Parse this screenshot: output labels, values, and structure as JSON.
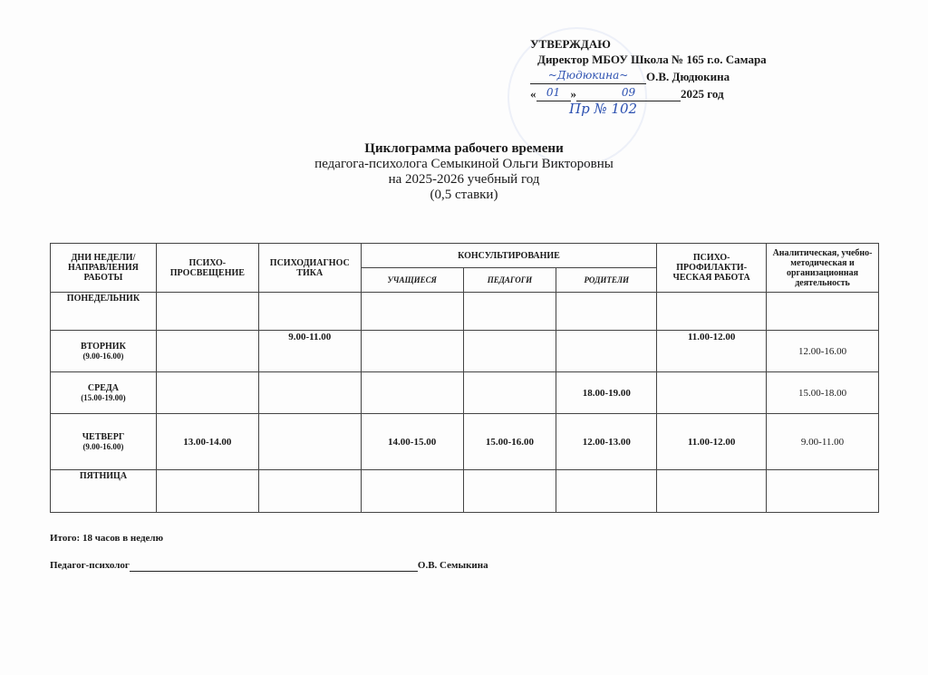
{
  "approval": {
    "heading": "УТВЕРЖДАЮ",
    "position": "Директор МБОУ Школа № 165 г.о. Самара",
    "name": "О.В. Дюдюкина",
    "date_day": "01",
    "date_month": "09",
    "date_year": "2025 год",
    "order": "Пр № 102"
  },
  "title": {
    "main": "Циклограмма рабочего времени",
    "line2": "педагога-психолога Семыкиной Ольги Викторовны",
    "line3": "на 2025-2026 учебный год",
    "line4": "(0,5 ставки)"
  },
  "table": {
    "headers": {
      "days": "ДНИ НЕДЕЛИ/ НАПРАВЛЕНИЯ РАБОТЫ",
      "education": "ПСИХО-ПРОСВЕЩЕНИЕ",
      "diagnostics": "ПСИХОДИАГНОС ТИКА",
      "consulting": "КОНСУЛЬТИРОВАНИЕ",
      "students": "УЧАЩИЕСЯ",
      "teachers": "ПЕДАГОГИ",
      "parents": "РОДИТЕЛИ",
      "prevention": "ПСИХО-ПРОФИЛАКТИ-ЧЕСКАЯ РАБОТА",
      "analytics": "Аналитическая, учебно-методическая и организационная деятельность"
    },
    "rows": [
      {
        "day": "ПОНЕДЕЛЬНИК",
        "hours": "",
        "cells": [
          "",
          "",
          "",
          "",
          "",
          "",
          ""
        ]
      },
      {
        "day": "ВТОРНИК",
        "hours": "(9.00-16.00)",
        "cells": [
          "",
          "9.00-11.00",
          "",
          "",
          "",
          "11.00-12.00",
          "12.00-16.00"
        ]
      },
      {
        "day": "СРЕДА",
        "hours": "(15.00-19.00)",
        "cells": [
          "",
          "",
          "",
          "",
          "18.00-19.00",
          "",
          "15.00-18.00"
        ]
      },
      {
        "day": "ЧЕТВЕРГ",
        "hours": "(9.00-16.00)",
        "cells": [
          "13.00-14.00",
          "",
          "14.00-15.00",
          "15.00-16.00",
          "12.00-13.00",
          "11.00-12.00",
          "9.00-11.00"
        ]
      },
      {
        "day": "ПЯТНИЦА",
        "hours": "",
        "cells": [
          "",
          "",
          "",
          "",
          "",
          "",
          ""
        ]
      }
    ]
  },
  "footer": {
    "total": "Итого: 18 часов в неделю",
    "signer_role": "Педагог-психолог",
    "signer_name": "О.В. Семыкина"
  }
}
